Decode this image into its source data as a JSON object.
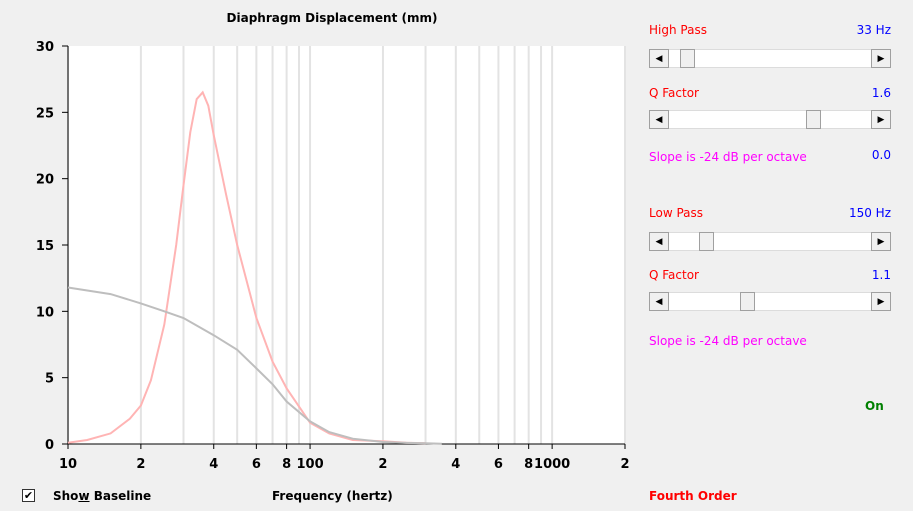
{
  "chart_data": {
    "type": "line",
    "title": "Diaphragm Displacement (mm)",
    "xlabel": "Frequency (hertz)",
    "xscale": "log",
    "xlim": [
      10,
      2000
    ],
    "ylim": [
      0,
      30
    ],
    "y_ticks": [
      "0",
      "5",
      "10",
      "15",
      "20",
      "25",
      "30"
    ],
    "x_ticks": [
      "10",
      "2",
      "4",
      "6",
      "8",
      "100",
      "2",
      "4",
      "6",
      "8",
      "1000",
      "2"
    ],
    "grid": true,
    "series": [
      {
        "color": "#ffb4b4",
        "x": [
          10,
          12,
          15,
          18,
          20,
          22,
          25,
          28,
          30,
          32,
          34,
          36,
          38,
          40,
          45,
          50,
          60,
          70,
          80,
          100,
          120,
          150,
          200,
          250,
          300
        ],
        "y": [
          0.1,
          0.3,
          0.8,
          1.9,
          2.9,
          4.8,
          9.0,
          15.0,
          19.5,
          23.5,
          26.0,
          26.5,
          25.5,
          23.3,
          18.8,
          15.0,
          9.5,
          6.2,
          4.2,
          1.6,
          0.8,
          0.3,
          0.2,
          0.1,
          0.05
        ]
      },
      {
        "color": "#bebebe",
        "x": [
          10,
          15,
          20,
          25,
          30,
          40,
          50,
          60,
          70,
          80,
          100,
          120,
          150,
          200,
          250,
          300,
          350
        ],
        "y": [
          11.8,
          11.3,
          10.6,
          10.0,
          9.5,
          8.2,
          7.1,
          5.7,
          4.5,
          3.2,
          1.7,
          0.9,
          0.4,
          0.15,
          0.08,
          0.05,
          0.02
        ]
      }
    ]
  },
  "controls": {
    "high_pass": {
      "label": "High Pass",
      "value": "33 Hz",
      "position": 0.06,
      "q_label": "Q Factor",
      "q_value": "1.6",
      "q_position": 0.73,
      "slope": "Slope is -24 dB per octave",
      "slope_value": "0.0"
    },
    "low_pass": {
      "label": "Low Pass",
      "value": "150 Hz",
      "position": 0.16,
      "q_label": "Q Factor",
      "q_value": "1.1",
      "q_position": 0.38,
      "slope": "Slope is -24 dB per octave"
    },
    "status": "On",
    "order": "Fourth Order"
  },
  "baseline_checkbox": {
    "checked": true,
    "label_pre": "Sho",
    "label_underline": "w",
    "label_post": " Baseline",
    "check_glyph": "✔"
  },
  "colors": {
    "label_red": "#ff0000",
    "value_blue": "#0000ff",
    "slope_magenta": "#ff00ff",
    "status_green": "#008000",
    "order_red": "#ff0000"
  }
}
